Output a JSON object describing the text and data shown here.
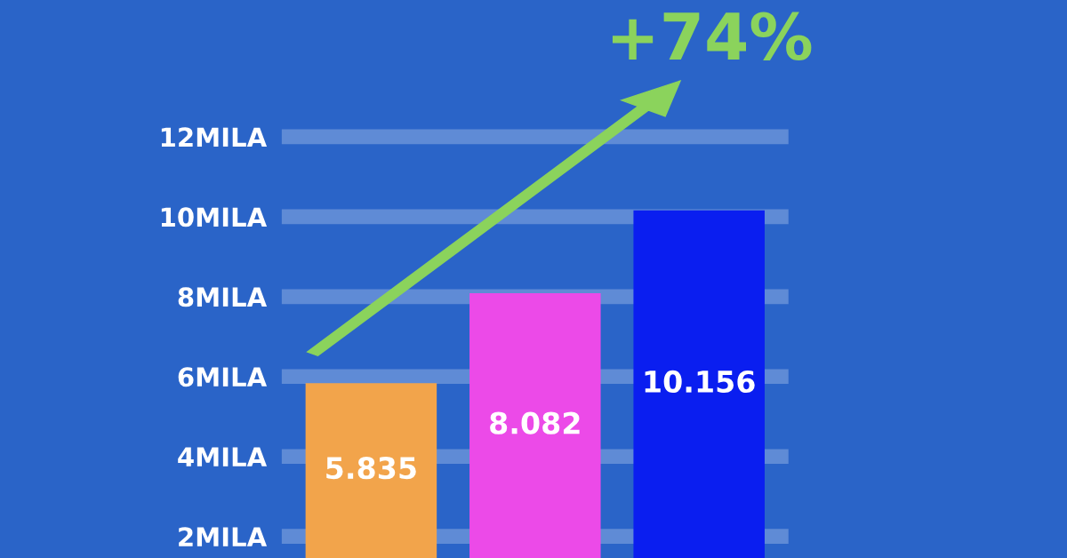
{
  "chart_data": {
    "type": "bar",
    "categories": [
      null,
      null,
      null
    ],
    "values": [
      5.835,
      8.082,
      10.156
    ],
    "colors": [
      "#f2a44b",
      "#ec4ae8",
      "#0a1ef0"
    ],
    "value_labels": [
      "5.835",
      "8.082",
      "10.156"
    ],
    "ylim": [
      1.46,
      12
    ],
    "yticks": [
      {
        "value": 2,
        "label": "2MILA"
      },
      {
        "value": 4,
        "label": "4MILA"
      },
      {
        "value": 6,
        "label": "6MILA"
      },
      {
        "value": 8,
        "label": "8MILA"
      },
      {
        "value": 10,
        "label": "10MILA"
      },
      {
        "value": 12,
        "label": "12MILA"
      }
    ],
    "grid": "y",
    "annotations": [
      "+74%"
    ]
  }
}
